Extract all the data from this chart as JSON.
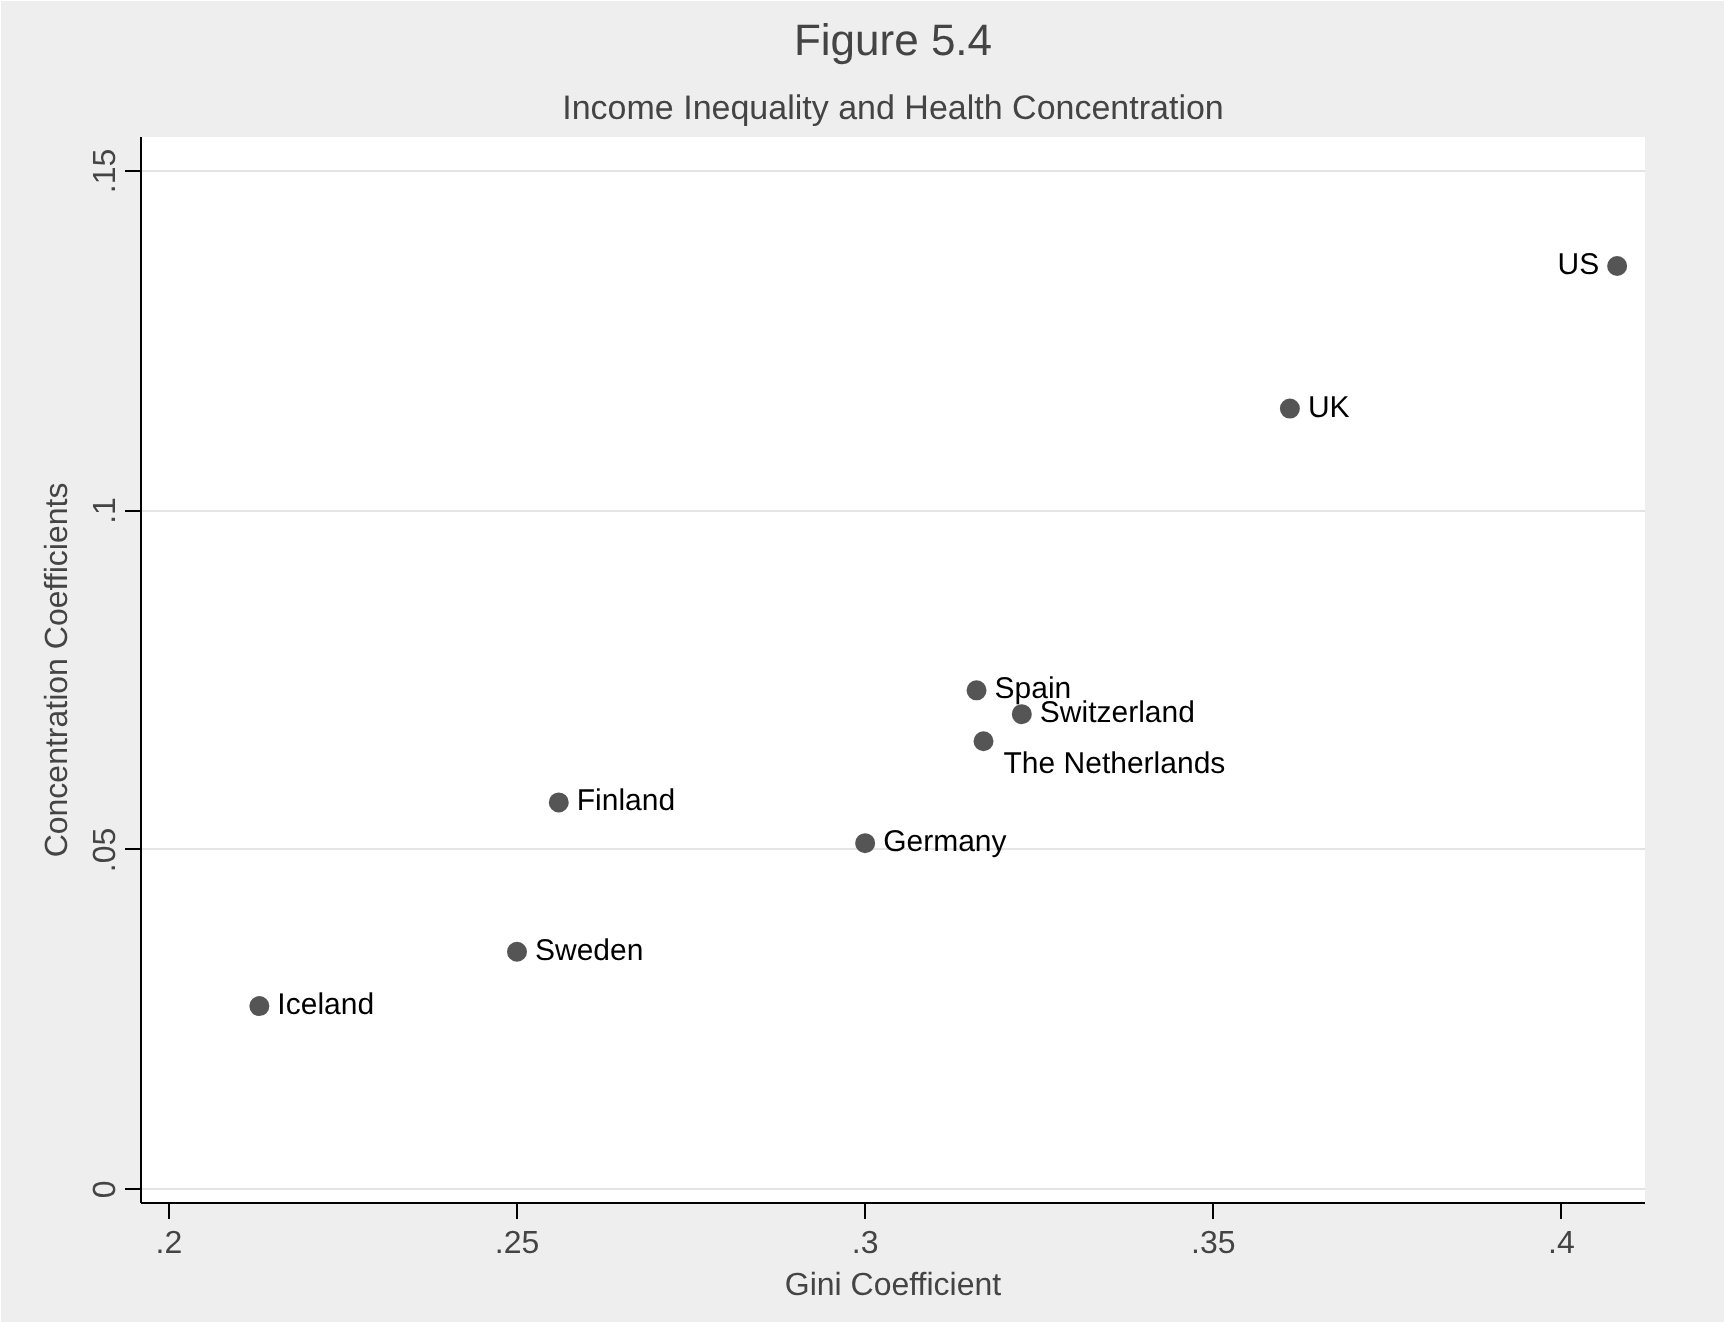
{
  "chart_data": {
    "type": "scatter",
    "title": "Figure 5.4",
    "subtitle": "Income Inequality and Health Concentration",
    "xlabel": "Gini Coefficient",
    "ylabel": "Concentration Coefficients",
    "x": [
      0.213,
      0.25,
      0.256,
      0.3,
      0.316,
      0.3225,
      0.317,
      0.361,
      0.408
    ],
    "series": [
      {
        "color": "#555555",
        "values": [
          0.027,
          0.035,
          0.057,
          0.051,
          0.0735,
          0.07,
          0.066,
          0.115,
          0.136
        ]
      }
    ],
    "annotations": [
      {
        "text": "Iceland",
        "x": 0.213,
        "y": 0.027
      },
      {
        "text": "Sweden",
        "x": 0.25,
        "y": 0.035
      },
      {
        "text": "Finland",
        "x": 0.256,
        "y": 0.057
      },
      {
        "text": "Germany",
        "x": 0.3,
        "y": 0.051
      },
      {
        "text": "Spain",
        "x": 0.316,
        "y": 0.0735
      },
      {
        "text": "Switzerland",
        "x": 0.3225,
        "y": 0.07
      },
      {
        "text": "The Netherlands",
        "x": 0.317,
        "y": 0.066
      },
      {
        "text": "UK",
        "x": 0.361,
        "y": 0.115
      },
      {
        "text": "US",
        "x": 0.408,
        "y": 0.136
      }
    ],
    "xlim": [
      0.196,
      0.412
    ],
    "ylim": [
      -0.002,
      0.155
    ],
    "xticks": [
      {
        "value": 0.2,
        "label": ".2"
      },
      {
        "value": 0.25,
        "label": ".25"
      },
      {
        "value": 0.3,
        "label": ".3"
      },
      {
        "value": 0.35,
        "label": ".35"
      },
      {
        "value": 0.4,
        "label": ".4"
      }
    ],
    "yticks": [
      0,
      {
        "value": 0.05,
        "label": ".05"
      },
      {
        "value": 0.1,
        "label": ".1"
      },
      {
        "value": 0.15,
        "label": ".15"
      }
    ],
    "grid": "y",
    "marker": "circle"
  }
}
